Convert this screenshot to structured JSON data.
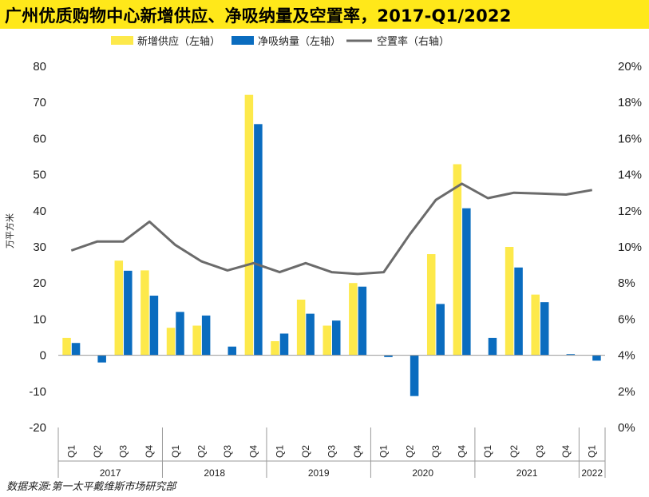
{
  "title": "广州优质购物中心新增供应、净吸纳量及空置率，2017-Q1/2022",
  "source": "数据来源:第一太平戴维斯市场研究部",
  "colors": {
    "title_bg": "#ffe81a",
    "supply": "#fde94b",
    "absorption": "#0a6cbf",
    "vacancy": "#6b6b6b"
  },
  "chart_data": {
    "type": "bar+line",
    "title": "广州优质购物中心新增供应、净吸纳量及空置率，2017-Q1/2022",
    "ylabel": "万平方米",
    "ylim": [
      -20,
      80
    ],
    "yticks": [
      "-20",
      "-10",
      "0",
      "10",
      "20",
      "30",
      "40",
      "50",
      "60",
      "70",
      "80"
    ],
    "y2lim": [
      0,
      20
    ],
    "y2ticks": [
      "0%",
      "2%",
      "4%",
      "6%",
      "8%",
      "10%",
      "12%",
      "14%",
      "16%",
      "18%",
      "20%"
    ],
    "legend_position": "top",
    "grid": false,
    "categories": [
      "Q1",
      "Q2",
      "Q3",
      "Q4",
      "Q1",
      "Q2",
      "Q3",
      "Q4",
      "Q1",
      "Q2",
      "Q3",
      "Q4",
      "Q1",
      "Q2",
      "Q3",
      "Q4",
      "Q1",
      "Q2",
      "Q3",
      "Q4",
      "Q1"
    ],
    "year_groups": [
      {
        "label": "2017",
        "span": 4
      },
      {
        "label": "2018",
        "span": 4
      },
      {
        "label": "2019",
        "span": 4
      },
      {
        "label": "2020",
        "span": 4
      },
      {
        "label": "2021",
        "span": 4
      },
      {
        "label": "2022",
        "span": 1
      }
    ],
    "series": [
      {
        "name": "新增供应（左轴）",
        "type": "bar",
        "axis": "left",
        "values": [
          4.8,
          0,
          26.2,
          23.5,
          7.6,
          8.2,
          0,
          72.1,
          3.9,
          15.4,
          8.2,
          20.0,
          0,
          0,
          28.0,
          52.9,
          0,
          30.0,
          16.8,
          0,
          0
        ]
      },
      {
        "name": "净吸纳量（左轴）",
        "type": "bar",
        "axis": "left",
        "values": [
          3.4,
          -2.0,
          23.4,
          16.5,
          12.0,
          11.0,
          2.4,
          64.0,
          6.0,
          11.5,
          9.6,
          19.0,
          -0.5,
          -11.3,
          14.2,
          40.7,
          4.8,
          24.3,
          14.7,
          0.3,
          -1.5
        ]
      },
      {
        "name": "空置率（右轴）",
        "type": "line",
        "axis": "right",
        "values": [
          9.8,
          10.3,
          10.3,
          11.4,
          10.1,
          9.2,
          8.7,
          9.1,
          8.6,
          9.1,
          8.6,
          8.5,
          8.6,
          10.7,
          12.6,
          13.5,
          12.7,
          13.0,
          12.95,
          12.9,
          13.15
        ]
      }
    ]
  }
}
